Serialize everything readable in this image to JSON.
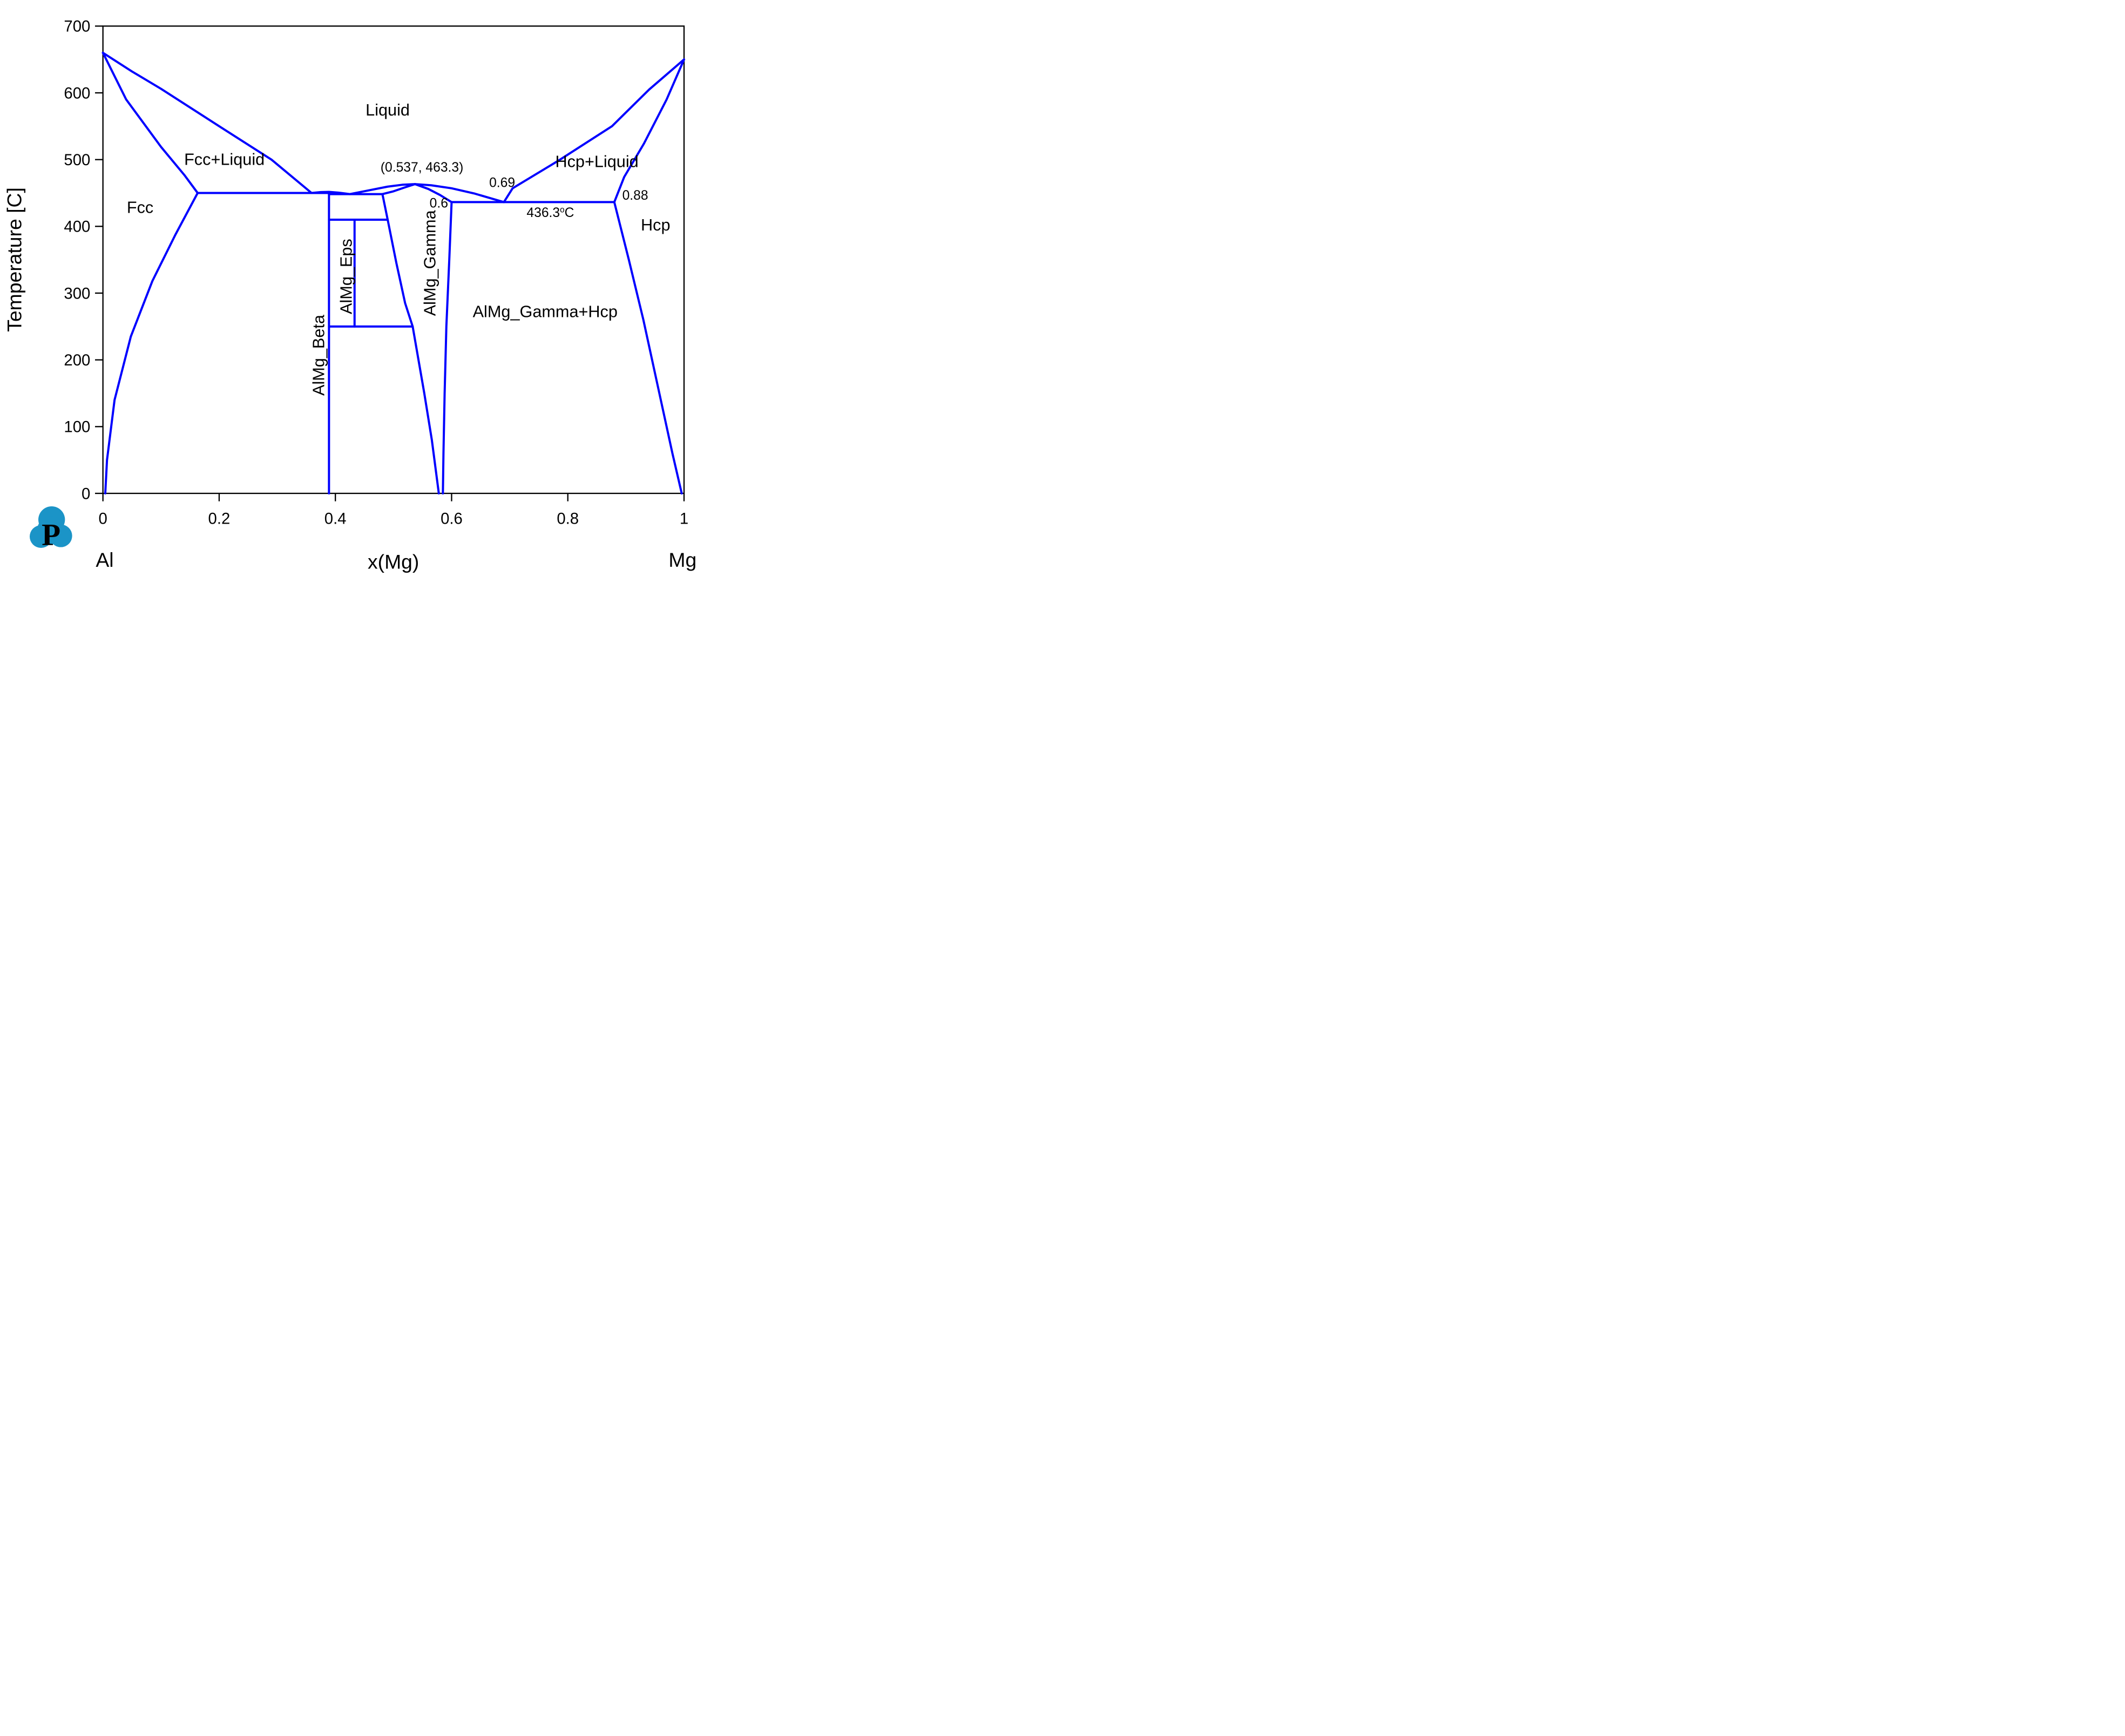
{
  "page": {
    "background": "#ffffff"
  },
  "logo": {
    "letter": "P",
    "color": "#1b94c7",
    "shape": "cloud-logo"
  },
  "chart_data": {
    "type": "line",
    "subtype": "binary-phase-diagram",
    "system": "Al-Mg",
    "title": "",
    "xlabel": "x(Mg)",
    "ylabel": "Temperature [C]",
    "end_members": {
      "left": "Al",
      "right": "Mg"
    },
    "xlim": [
      0,
      1
    ],
    "ylim": [
      0,
      700
    ],
    "grid": false,
    "legend_position": "none",
    "line_color": "#0000ff",
    "axis_color": "#000000",
    "x_ticks": {
      "values": [
        0,
        0.2,
        0.4,
        0.6,
        0.8,
        1
      ],
      "labels": [
        "0",
        "0.2",
        "0.4",
        "0.6",
        "0.8",
        "1"
      ]
    },
    "y_ticks": {
      "values": [
        0,
        100,
        200,
        300,
        400,
        500,
        600,
        700
      ],
      "labels": [
        "0",
        "100",
        "200",
        "300",
        "400",
        "500",
        "600",
        "700"
      ]
    },
    "invariants": {
      "al_melting_C": 660,
      "mg_melting_C": 650,
      "fcc_beta_eutectic": {
        "T": 450,
        "liquid_x": 0.359,
        "fcc_x": 0.163,
        "beta_x": 0.389
      },
      "beta_gamma_eutectic": {
        "T": 448.3,
        "liquid_x": 0.425,
        "beta_x": 0.389,
        "gamma_x": 0.481
      },
      "gamma_congruent_point": {
        "x": 0.537,
        "T": 463.3
      },
      "gamma_hcp_eutectic": {
        "T": 436.3,
        "liquid_x": 0.69,
        "gamma_x": 0.6,
        "hcp_x": 0.88
      },
      "eps_upper_T": 410,
      "eps_lower_T": 250,
      "eps_x": 0.433,
      "beta_x": 0.389
    },
    "boundaries": [
      {
        "name": "fcc-liquidus",
        "points": [
          [
            0,
            660
          ],
          [
            0.05,
            632
          ],
          [
            0.1,
            606
          ],
          [
            0.2,
            550
          ],
          [
            0.29,
            500
          ],
          [
            0.359,
            450
          ]
        ]
      },
      {
        "name": "fcc-solidus",
        "points": [
          [
            0,
            660
          ],
          [
            0.04,
            590
          ],
          [
            0.1,
            519
          ],
          [
            0.14,
            477
          ],
          [
            0.163,
            450
          ]
        ]
      },
      {
        "name": "fcc-solvus",
        "points": [
          [
            0.163,
            450
          ],
          [
            0.125,
            388
          ],
          [
            0.085,
            318
          ],
          [
            0.048,
            235
          ],
          [
            0.02,
            140
          ],
          [
            0.007,
            50
          ],
          [
            0.004,
            0
          ]
        ]
      },
      {
        "name": "eutectic-line-fcc-beta",
        "points": [
          [
            0.163,
            450
          ],
          [
            0.389,
            450
          ]
        ]
      },
      {
        "name": "liquidus-over-beta",
        "points": [
          [
            0.359,
            450
          ],
          [
            0.375,
            451.3
          ],
          [
            0.389,
            451.6
          ],
          [
            0.405,
            450.5
          ],
          [
            0.425,
            448.3
          ]
        ]
      },
      {
        "name": "eutectic-line-beta-gamma",
        "points": [
          [
            0.389,
            448.3
          ],
          [
            0.481,
            448.3
          ]
        ]
      },
      {
        "name": "beta-compound-line",
        "points": [
          [
            0.389,
            450
          ],
          [
            0.389,
            0
          ]
        ]
      },
      {
        "name": "eps-compound-line",
        "points": [
          [
            0.433,
            410
          ],
          [
            0.433,
            250
          ]
        ]
      },
      {
        "name": "eps-formation-line-410",
        "points": [
          [
            0.389,
            410
          ],
          [
            0.49,
            410
          ]
        ]
      },
      {
        "name": "eps-decomposition-line-250",
        "points": [
          [
            0.389,
            250
          ],
          [
            0.533,
            250
          ]
        ]
      },
      {
        "name": "gamma-left-solvus",
        "points": [
          [
            0.481,
            448.3
          ],
          [
            0.49,
            410
          ],
          [
            0.505,
            345
          ],
          [
            0.52,
            285
          ],
          [
            0.533,
            250
          ],
          [
            0.553,
            150
          ],
          [
            0.566,
            80
          ],
          [
            0.578,
            0
          ]
        ]
      },
      {
        "name": "gamma-right-solvus",
        "points": [
          [
            0.6,
            436.3
          ],
          [
            0.596,
            350
          ],
          [
            0.591,
            250
          ],
          [
            0.588,
            150
          ],
          [
            0.586,
            60
          ],
          [
            0.585,
            0
          ]
        ]
      },
      {
        "name": "gamma-liquidus-left",
        "points": [
          [
            0.425,
            448.3
          ],
          [
            0.455,
            453.5
          ],
          [
            0.49,
            459.5
          ],
          [
            0.515,
            462.3
          ],
          [
            0.537,
            463.3
          ]
        ]
      },
      {
        "name": "gamma-liquidus-right",
        "points": [
          [
            0.537,
            463.3
          ],
          [
            0.565,
            461.5
          ],
          [
            0.6,
            457
          ],
          [
            0.64,
            449
          ],
          [
            0.69,
            436.3
          ]
        ]
      },
      {
        "name": "gamma-solidus-left",
        "points": [
          [
            0.481,
            448.3
          ],
          [
            0.5,
            452.5
          ],
          [
            0.52,
            458.5
          ],
          [
            0.537,
            463.3
          ]
        ]
      },
      {
        "name": "gamma-solidus-right",
        "points": [
          [
            0.537,
            463.3
          ],
          [
            0.56,
            456
          ],
          [
            0.58,
            447
          ],
          [
            0.6,
            436.3
          ]
        ]
      },
      {
        "name": "eutectic-line-gamma-hcp",
        "points": [
          [
            0.6,
            436.3
          ],
          [
            0.88,
            436.3
          ]
        ]
      },
      {
        "name": "hcp-liquidus",
        "points": [
          [
            0.69,
            436.3
          ],
          [
            0.705,
            457
          ],
          [
            0.783,
            498
          ],
          [
            0.876,
            550
          ],
          [
            0.94,
            605
          ],
          [
            1,
            650
          ]
        ]
      },
      {
        "name": "hcp-solidus",
        "points": [
          [
            0.88,
            436.3
          ],
          [
            0.897,
            474
          ],
          [
            0.931,
            524
          ],
          [
            0.97,
            590
          ],
          [
            1,
            650
          ]
        ]
      },
      {
        "name": "hcp-solvus",
        "points": [
          [
            0.88,
            436.3
          ],
          [
            0.905,
            350
          ],
          [
            0.93,
            260
          ],
          [
            0.955,
            160
          ],
          [
            0.98,
            60
          ],
          [
            0.996,
            0
          ]
        ]
      }
    ],
    "labels": [
      {
        "name": "region-liquid",
        "text": "Liquid",
        "x": 0.49,
        "T": 566,
        "size": 92
      },
      {
        "name": "region-fcc-liquid",
        "text": "Fcc+Liquid",
        "x": 0.209,
        "T": 492,
        "size": 92
      },
      {
        "name": "region-fcc",
        "text": "Fcc",
        "x": 0.064,
        "T": 420,
        "size": 92
      },
      {
        "name": "region-hcp-liquid",
        "text": "Hcp+Liquid",
        "x": 0.85,
        "T": 489,
        "size": 92
      },
      {
        "name": "region-hcp",
        "text": "Hcp",
        "x": 0.951,
        "T": 394,
        "size": 92
      },
      {
        "name": "region-gamma-hcp",
        "text": "AlMg_Gamma+Hcp",
        "x": 0.761,
        "T": 264,
        "size": 92
      },
      {
        "name": "annotation-congruent-point",
        "text": "(0.537, 463.3)",
        "x": 0.549,
        "T": 482,
        "size": 74
      },
      {
        "name": "annotation-liquid-069",
        "text": "0.69",
        "x": 0.687,
        "T": 459,
        "size": 74
      },
      {
        "name": "annotation-gamma-06",
        "text": "0.6",
        "x": 0.578,
        "T": 428,
        "size": 74
      },
      {
        "name": "annotation-hcp-088",
        "text": "0.88",
        "x": 0.916,
        "T": 440,
        "size": 74
      },
      {
        "name": "annotation-eutectic-temp",
        "parts": [
          {
            "t": "436.3"
          },
          {
            "t": "o",
            "sup": true
          },
          {
            "t": "C"
          }
        ],
        "x": 0.77,
        "T": 414,
        "size": 74
      },
      {
        "name": "phase-almg-beta",
        "text": "AlMg_Beta",
        "x": 0.381,
        "T": 207,
        "rot": -90,
        "size": 92
      },
      {
        "name": "phase-almg-eps",
        "text": "AlMg_Eps",
        "x": 0.428,
        "T": 325,
        "rot": -90,
        "size": 92
      },
      {
        "name": "phase-almg-gamma",
        "text": "AlMg_Gamma",
        "x": 0.572,
        "T": 345,
        "rot": -90,
        "size": 92
      }
    ]
  }
}
